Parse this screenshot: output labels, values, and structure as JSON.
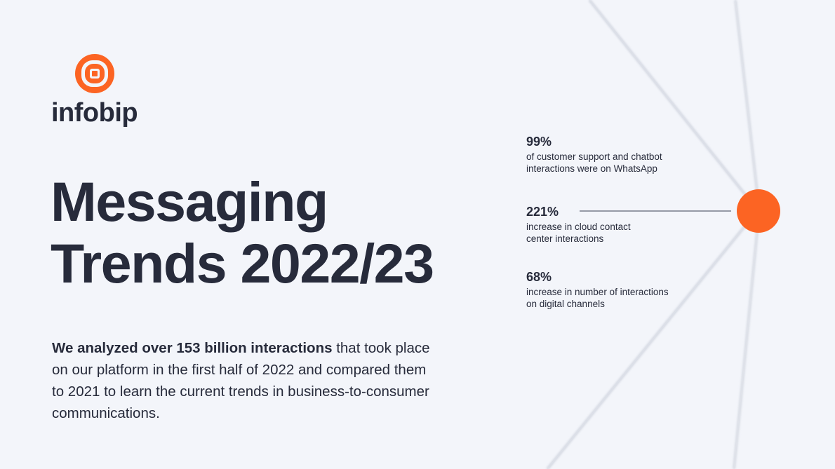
{
  "brand": {
    "name": "infobip",
    "logo_color": "#fc6423"
  },
  "title": {
    "line1": "Messaging",
    "line2": "Trends 2022/23"
  },
  "intro": {
    "bold": "We analyzed over 153 billion interactions",
    "rest": " that took place on our platform in the first half of 2022 and compared them to 2021 to learn the current trends in business-to-consumer communications."
  },
  "stats": [
    {
      "value": "99%",
      "line1": "of customer support and chatbot",
      "line2": "interactions were on WhatsApp"
    },
    {
      "value": "221%",
      "line1": "increase in cloud contact",
      "line2": "center interactions"
    },
    {
      "value": "68%",
      "line1": "increase in number of interactions",
      "line2": "on digital channels"
    }
  ],
  "colors": {
    "accent": "#fc6423",
    "text": "#272b3b",
    "background": "#f3f5fa"
  }
}
